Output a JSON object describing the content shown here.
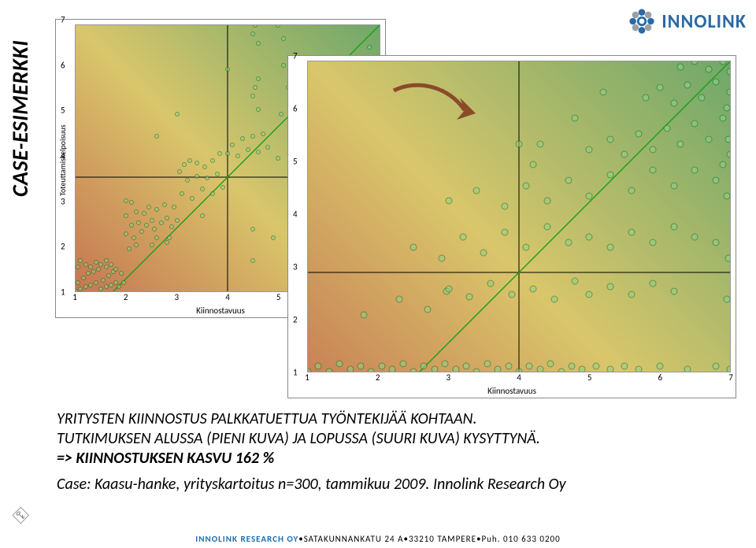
{
  "side_title": "CASE-ESIMERKKI",
  "logo": {
    "text": "INNOLINK",
    "primary": "#2b6aa3",
    "secondary": "#9aa0a6"
  },
  "footer": {
    "company": "INNOLINK RESEARCH OY",
    "sep": " • ",
    "address": "SATAKUNNANKATU 24 A",
    "city": "33210 TAMPERE",
    "phone": "Puh. 010 633 0200"
  },
  "text": {
    "line1": "YRITYSTEN KIINNOSTUS PALKKATUETTUA TYÖNTEKIJÄÄ KOHTAAN.",
    "line2": "TUTKIMUKSEN ALUSSA (PIENI KUVA) JA LOPUSSA (SUURI KUVA) KYSYTTYNÄ.",
    "line3": "=> KIINNOSTUKSEN KASVU 162 %",
    "case": "Case: Kaasu-hanke, yrityskartoitus n=300, tammikuu 2009. Innolink Research Oy"
  },
  "chart_style": {
    "xlabel": "Kiinnostavuus",
    "ylabel": "Toteuttamiskelpoisuus",
    "xlim": [
      1,
      7
    ],
    "ylim": [
      1,
      7
    ],
    "ticks": [
      1,
      2,
      3,
      4,
      5,
      6,
      7
    ],
    "tick_fontsize": 11,
    "axis_label_fontsize": 11,
    "point_radius_small": 3,
    "point_radius_big": 4.5,
    "point_stroke": "#1f6f1f",
    "point_fill": "#8fd28f",
    "point_fill_opacity": 0.55,
    "cross_line_color": "#000000",
    "diag_line_color": "#17a117",
    "diag_line_width": 1.4,
    "bg_red": "#c36a4e",
    "bg_yellow": "#d9c66b",
    "bg_green": "#6fa86a"
  },
  "arrow": {
    "color": "#8a4b2a",
    "stroke_width": 5
  },
  "small_chart": {
    "points": [
      [
        1.0,
        1.0
      ],
      [
        1.05,
        1.2
      ],
      [
        1.1,
        1.05
      ],
      [
        1.15,
        1.3
      ],
      [
        1.2,
        1.1
      ],
      [
        1.25,
        1.4
      ],
      [
        1.3,
        1.15
      ],
      [
        1.35,
        1.45
      ],
      [
        1.4,
        1.2
      ],
      [
        1.45,
        1.5
      ],
      [
        1.05,
        1.55
      ],
      [
        1.5,
        1.05
      ],
      [
        1.55,
        1.25
      ],
      [
        1.6,
        1.1
      ],
      [
        1.65,
        1.35
      ],
      [
        1.7,
        1.15
      ],
      [
        1.75,
        1.45
      ],
      [
        1.8,
        1.2
      ],
      [
        1.1,
        1.7
      ],
      [
        1.2,
        1.6
      ],
      [
        1.3,
        1.55
      ],
      [
        1.4,
        1.65
      ],
      [
        1.5,
        1.6
      ],
      [
        1.6,
        1.55
      ],
      [
        1.7,
        1.6
      ],
      [
        1.8,
        1.5
      ],
      [
        1.9,
        1.4
      ],
      [
        1.95,
        1.2
      ],
      [
        1.85,
        1.1
      ],
      [
        1.6,
        1.7
      ],
      [
        2.0,
        2.3
      ],
      [
        2.0,
        2.7
      ],
      [
        2.05,
        1.95
      ],
      [
        2.1,
        2.5
      ],
      [
        2.15,
        2.2
      ],
      [
        2.2,
        2.8
      ],
      [
        2.0,
        3.05
      ],
      [
        2.1,
        3.0
      ],
      [
        2.25,
        2.55
      ],
      [
        2.3,
        2.35
      ],
      [
        2.35,
        2.75
      ],
      [
        2.4,
        2.5
      ],
      [
        2.45,
        2.9
      ],
      [
        2.5,
        2.6
      ],
      [
        2.55,
        2.4
      ],
      [
        2.6,
        2.85
      ],
      [
        2.7,
        2.55
      ],
      [
        2.75,
        2.95
      ],
      [
        2.8,
        2.65
      ],
      [
        2.9,
        2.45
      ],
      [
        2.95,
        2.9
      ],
      [
        2.85,
        2.2
      ],
      [
        2.2,
        2.05
      ],
      [
        2.5,
        2.05
      ],
      [
        2.6,
        2.2
      ],
      [
        2.8,
        2.1
      ],
      [
        3.1,
        3.2
      ],
      [
        3.2,
        3.5
      ],
      [
        3.3,
        3.1
      ],
      [
        3.4,
        3.6
      ],
      [
        3.5,
        3.3
      ],
      [
        3.05,
        3.7
      ],
      [
        3.6,
        3.55
      ],
      [
        3.7,
        3.2
      ],
      [
        3.8,
        3.65
      ],
      [
        3.9,
        3.35
      ],
      [
        3.15,
        3.85
      ],
      [
        3.25,
        3.95
      ],
      [
        3.4,
        3.9
      ],
      [
        3.55,
        3.8
      ],
      [
        3.7,
        3.95
      ],
      [
        3.85,
        4.1
      ],
      [
        3.5,
        2.7
      ],
      [
        3.0,
        2.6
      ],
      [
        4.0,
        4.1
      ],
      [
        4.1,
        4.3
      ],
      [
        4.2,
        4.05
      ],
      [
        4.3,
        4.45
      ],
      [
        4.4,
        4.2
      ],
      [
        4.5,
        4.5
      ],
      [
        4.6,
        5.1
      ],
      [
        4.6,
        4.15
      ],
      [
        4.7,
        4.55
      ],
      [
        4.8,
        4.25
      ],
      [
        4.5,
        5.4
      ],
      [
        4.55,
        5.6
      ],
      [
        4.6,
        5.8
      ],
      [
        4.6,
        6.6
      ],
      [
        4.5,
        6.8
      ],
      [
        4.55,
        7.0
      ],
      [
        5.05,
        5.0
      ],
      [
        5.0,
        7.0
      ],
      [
        5.1,
        6.1
      ],
      [
        5.1,
        6.7
      ],
      [
        5.2,
        5.6
      ],
      [
        5.3,
        5.2
      ],
      [
        5.4,
        5.7
      ],
      [
        5.5,
        5.3
      ],
      [
        6.0,
        5.1
      ],
      [
        6.0,
        6.0
      ],
      [
        6.5,
        6.0
      ],
      [
        6.8,
        6.5
      ],
      [
        7.0,
        6.0
      ],
      [
        6.3,
        4.0
      ],
      [
        4.0,
        6.0
      ],
      [
        5.0,
        4.0
      ],
      [
        5.5,
        3.1
      ],
      [
        3.0,
        5.0
      ],
      [
        4.5,
        2.4
      ],
      [
        2.6,
        4.5
      ],
      [
        4.5,
        1.7
      ],
      [
        4.9,
        2.2
      ],
      [
        6.1,
        2.9
      ]
    ]
  },
  "big_chart": {
    "points": [
      [
        1.0,
        1.0
      ],
      [
        1.15,
        1.1
      ],
      [
        1.3,
        1.0
      ],
      [
        1.45,
        1.15
      ],
      [
        1.6,
        1.05
      ],
      [
        1.75,
        1.1
      ],
      [
        1.9,
        1.0
      ],
      [
        2.05,
        1.1
      ],
      [
        2.2,
        1.05
      ],
      [
        2.35,
        1.15
      ],
      [
        2.5,
        1.0
      ],
      [
        2.65,
        1.1
      ],
      [
        2.8,
        1.05
      ],
      [
        2.95,
        1.15
      ],
      [
        3.1,
        1.05
      ],
      [
        3.25,
        1.1
      ],
      [
        3.4,
        1.0
      ],
      [
        3.55,
        1.15
      ],
      [
        3.7,
        1.05
      ],
      [
        3.85,
        1.1
      ],
      [
        4.0,
        1.0
      ],
      [
        4.15,
        1.1
      ],
      [
        4.3,
        1.05
      ],
      [
        4.45,
        1.15
      ],
      [
        4.6,
        1.0
      ],
      [
        4.75,
        1.1
      ],
      [
        4.9,
        1.05
      ],
      [
        5.1,
        1.1
      ],
      [
        5.3,
        1.05
      ],
      [
        5.5,
        1.1
      ],
      [
        5.7,
        1.05
      ],
      [
        6.0,
        1.1
      ],
      [
        6.4,
        1.05
      ],
      [
        6.8,
        1.1
      ],
      [
        7.0,
        1.05
      ],
      [
        1.8,
        2.1
      ],
      [
        2.3,
        2.4
      ],
      [
        2.7,
        2.2
      ],
      [
        2.97,
        2.55
      ],
      [
        3.0,
        2.6
      ],
      [
        3.3,
        2.45
      ],
      [
        3.6,
        2.7
      ],
      [
        3.9,
        2.5
      ],
      [
        4.2,
        2.6
      ],
      [
        4.5,
        2.4
      ],
      [
        4.8,
        2.75
      ],
      [
        5.0,
        2.5
      ],
      [
        5.3,
        2.65
      ],
      [
        5.6,
        2.5
      ],
      [
        5.9,
        2.7
      ],
      [
        6.2,
        2.55
      ],
      [
        2.5,
        3.4
      ],
      [
        2.9,
        3.2
      ],
      [
        3.2,
        3.6
      ],
      [
        3.5,
        3.3
      ],
      [
        3.8,
        3.7
      ],
      [
        4.1,
        3.4
      ],
      [
        4.4,
        3.8
      ],
      [
        4.7,
        3.5
      ],
      [
        5.0,
        3.6
      ],
      [
        5.3,
        3.4
      ],
      [
        5.6,
        3.7
      ],
      [
        5.9,
        3.5
      ],
      [
        6.2,
        3.8
      ],
      [
        6.5,
        3.6
      ],
      [
        3.0,
        4.3
      ],
      [
        3.4,
        4.5
      ],
      [
        3.8,
        4.2
      ],
      [
        4.1,
        4.6
      ],
      [
        4.2,
        5.0
      ],
      [
        4.0,
        5.4
      ],
      [
        4.4,
        4.3
      ],
      [
        4.7,
        4.7
      ],
      [
        5.0,
        4.4
      ],
      [
        5.3,
        4.8
      ],
      [
        5.6,
        4.5
      ],
      [
        5.9,
        4.9
      ],
      [
        6.2,
        4.6
      ],
      [
        6.5,
        4.9
      ],
      [
        6.8,
        4.7
      ],
      [
        5.0,
        5.3
      ],
      [
        5.3,
        5.5
      ],
      [
        5.5,
        5.2
      ],
      [
        5.7,
        5.6
      ],
      [
        5.9,
        5.3
      ],
      [
        6.1,
        5.7
      ],
      [
        6.3,
        5.4
      ],
      [
        6.5,
        5.8
      ],
      [
        6.7,
        5.5
      ],
      [
        6.9,
        5.9
      ],
      [
        5.8,
        6.3
      ],
      [
        6.0,
        6.5
      ],
      [
        6.2,
        6.2
      ],
      [
        6.4,
        6.55
      ],
      [
        6.6,
        6.3
      ],
      [
        6.8,
        6.6
      ],
      [
        7.0,
        6.4
      ],
      [
        6.3,
        6.9
      ],
      [
        6.5,
        7.0
      ],
      [
        6.7,
        6.85
      ],
      [
        6.9,
        7.0
      ],
      [
        7.0,
        6.8
      ],
      [
        6.95,
        6.1
      ],
      [
        6.98,
        5.5
      ],
      [
        7.0,
        5.2
      ],
      [
        6.95,
        4.4
      ],
      [
        6.98,
        3.2
      ],
      [
        6.95,
        2.4
      ],
      [
        6.9,
        5.0
      ],
      [
        6.8,
        3.5
      ],
      [
        5.2,
        6.4
      ],
      [
        4.8,
        5.9
      ],
      [
        4.3,
        5.4
      ]
    ]
  }
}
